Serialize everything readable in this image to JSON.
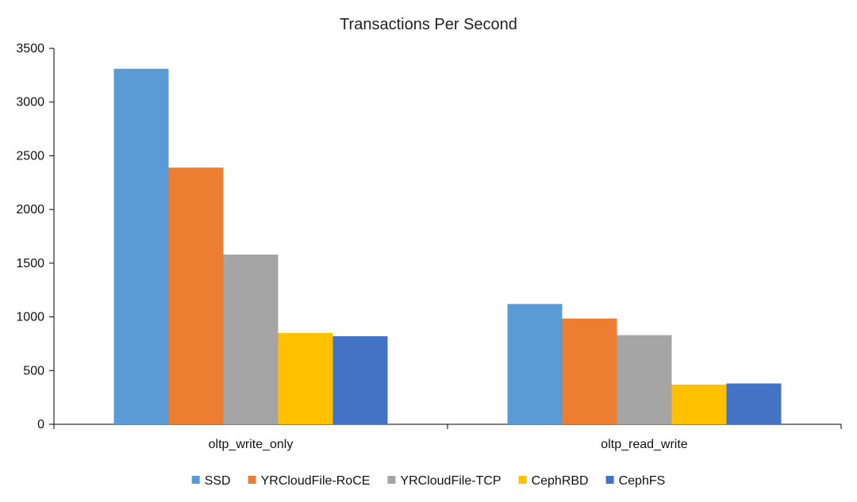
{
  "chart_data": {
    "type": "bar",
    "title": "Transactions Per Second",
    "xlabel": "",
    "ylabel": "",
    "categories": [
      "oltp_write_only",
      "oltp_read_write"
    ],
    "ylim": [
      0,
      3500
    ],
    "yticks": [
      0,
      500,
      1000,
      1500,
      2000,
      2500,
      3000,
      3500
    ],
    "grid": false,
    "legend_position": "bottom",
    "series": [
      {
        "name": "SSD",
        "color": "#5B9BD5",
        "values": [
          3310,
          1120
        ]
      },
      {
        "name": "YRCloudFile-RoCE",
        "color": "#ED7D31",
        "values": [
          2390,
          985
        ]
      },
      {
        "name": "YRCloudFile-TCP",
        "color": "#A5A5A5",
        "values": [
          1580,
          830
        ]
      },
      {
        "name": "CephRBD",
        "color": "#FFC000",
        "values": [
          850,
          370
        ]
      },
      {
        "name": "CephFS",
        "color": "#4472C4",
        "values": [
          820,
          380
        ]
      }
    ]
  }
}
